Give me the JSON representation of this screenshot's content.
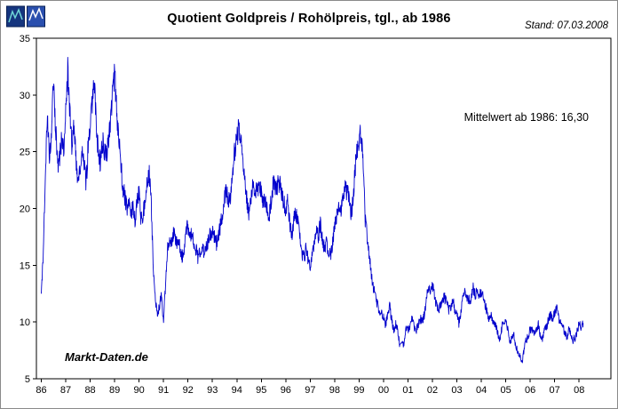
{
  "header": {
    "title": "Quotient Goldpreis / Rohölpreis, tgl., ab 1986",
    "stand": "Stand: 07.03.2008"
  },
  "annotations": {
    "mittelwert": "Mittelwert ab 1986: 16,30",
    "watermark": "Markt-Daten.de"
  },
  "chart_data": {
    "type": "line",
    "title": "Quotient Goldpreis / Rohölpreis, tgl., ab 1986",
    "xlabel": "",
    "ylabel": "",
    "xlim": [
      1985.8,
      2009.3
    ],
    "ylim": [
      5,
      35
    ],
    "grid": false,
    "legend": false,
    "line_color": "#0000cc",
    "mean_ab_1986": 16.3,
    "x_ticks": {
      "years": [
        1986,
        1987,
        1988,
        1989,
        1990,
        1991,
        1992,
        1993,
        1994,
        1995,
        1996,
        1997,
        1998,
        1999,
        2000,
        2001,
        2002,
        2003,
        2004,
        2005,
        2006,
        2007,
        2008
      ],
      "labels": [
        "86",
        "87",
        "88",
        "89",
        "90",
        "91",
        "92",
        "93",
        "94",
        "95",
        "96",
        "97",
        "98",
        "99",
        "00",
        "01",
        "02",
        "03",
        "04",
        "05",
        "06",
        "07",
        "08"
      ]
    },
    "y_ticks": {
      "values": [
        5,
        10,
        15,
        20,
        25,
        30,
        35
      ],
      "labels": [
        "5",
        "10",
        "15",
        "20",
        "25",
        "30",
        "35"
      ]
    },
    "series": [
      {
        "name": "Goldpreis/Rohölpreis-Quotient",
        "color": "#0000cc",
        "x_start": 1986.0,
        "x_unit": "year_decimal",
        "interval": "monthly_keypoints",
        "values": [
          12.5,
          16,
          23,
          28,
          24,
          27,
          31,
          27.5,
          23.5,
          24.5,
          26,
          25,
          28.5,
          32.2,
          28.5,
          25.5,
          27,
          24.5,
          22.5,
          23.5,
          25,
          24,
          22,
          25.5,
          27.5,
          29.5,
          31.5,
          27,
          25,
          24,
          26,
          25,
          24.5,
          26,
          28,
          30,
          31.8,
          28.5,
          26,
          24,
          22,
          21,
          20,
          21,
          19.5,
          20,
          19,
          20.5,
          21.5,
          19,
          19.5,
          21,
          22.5,
          23,
          20.5,
          14.5,
          11.8,
          10.6,
          11.5,
          12.5,
          9.8,
          13.5,
          16.5,
          17.5,
          17,
          18,
          17.2,
          16.6,
          16.8,
          15.6,
          16.2,
          18,
          18.4,
          18,
          17.5,
          16.8,
          16.4,
          15.6,
          16.1,
          16.6,
          16.1,
          16.6,
          17.2,
          17.8,
          18,
          17.4,
          16.9,
          17.6,
          18.6,
          19.6,
          21,
          21.5,
          20.6,
          21.2,
          23,
          25.2,
          26,
          27.6,
          25.8,
          23.8,
          22,
          20.6,
          19.6,
          21,
          22,
          21.6,
          21.4,
          22,
          21.4,
          20.6,
          21,
          19.6,
          19.6,
          21,
          22.4,
          21.6,
          22,
          22.4,
          21.4,
          20.6,
          19.6,
          20.6,
          18.6,
          17.6,
          19,
          19.6,
          18.6,
          17.6,
          16,
          15.6,
          16.6,
          15.6,
          14.6,
          16,
          17,
          18,
          17.6,
          18.6,
          17.2,
          16.6,
          17,
          16.2,
          15.8,
          17,
          18.4,
          19.6,
          20.4,
          20,
          20.6,
          22,
          21.4,
          21,
          19.6,
          20.6,
          23.4,
          25.4,
          26,
          27,
          23.6,
          19,
          17.6,
          16,
          14.2,
          13,
          12.2,
          11.6,
          10.8,
          11,
          10.4,
          9.7,
          10.6,
          11.4,
          10.2,
          9.2,
          9.8,
          9.2,
          7.8,
          8.2,
          7.9,
          9.4,
          9.2,
          9.8,
          10.2,
          9.6,
          9.3,
          9.7,
          10.3,
          10.1,
          10.6,
          12,
          13,
          12.6,
          13.1,
          12.4,
          11.5,
          11,
          11.5,
          12,
          12.1,
          11.6,
          11.1,
          11.2,
          12,
          11.1,
          10.6,
          9.9,
          11,
          12.4,
          12.8,
          12.1,
          11.9,
          12.1,
          13,
          12.4,
          12.6,
          12.4,
          12.6,
          12.1,
          11.4,
          10.8,
          10.2,
          10.6,
          9.9,
          9.6,
          9.1,
          8.3,
          9.4,
          10.2,
          10,
          9.4,
          8.3,
          8.6,
          8.8,
          7.9,
          7.4,
          6.9,
          6.4,
          7.6,
          8.4,
          8.8,
          9.4,
          9.2,
          9.1,
          9.4,
          9.8,
          8.6,
          8.6,
          9.4,
          9.6,
          10.2,
          10.6,
          10.2,
          10.9,
          11.2,
          10.4,
          9.8,
          9.6,
          9.1,
          8.6,
          9.4,
          8.9,
          8.4,
          8.6,
          9.2,
          9.8,
          9.6,
          9.9
        ]
      }
    ],
    "noise": {
      "amplitude_frac": 0.04,
      "substeps": 7,
      "seed": 20080307
    }
  }
}
